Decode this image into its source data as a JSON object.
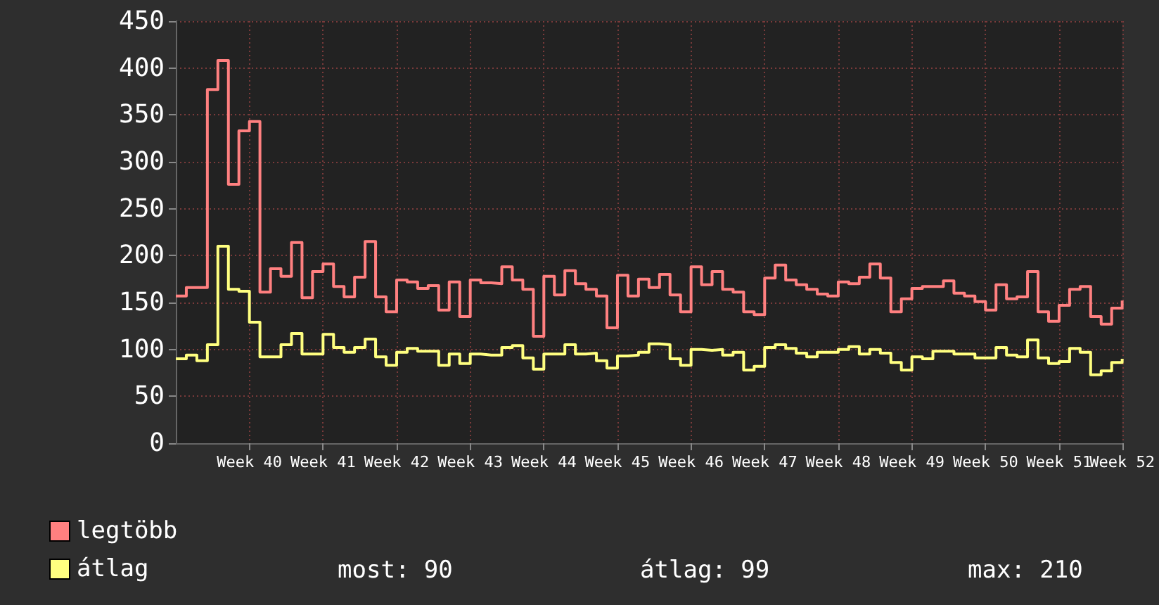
{
  "chart_data": {
    "type": "step",
    "categories": [
      null,
      null,
      null,
      null,
      null,
      null,
      null,
      "Week 40",
      null,
      null,
      null,
      null,
      null,
      null,
      "Week 41",
      null,
      null,
      null,
      null,
      null,
      null,
      "Week 42",
      null,
      null,
      null,
      null,
      null,
      null,
      "Week 43",
      null,
      null,
      null,
      null,
      null,
      null,
      "Week 44",
      null,
      null,
      null,
      null,
      null,
      null,
      "Week 45",
      null,
      null,
      null,
      null,
      null,
      null,
      "Week 46",
      null,
      null,
      null,
      null,
      null,
      null,
      "Week 47",
      null,
      null,
      null,
      null,
      null,
      null,
      "Week 48",
      null,
      null,
      null,
      null,
      null,
      null,
      "Week 49",
      null,
      null,
      null,
      null,
      null,
      null,
      "Week 50",
      null,
      null,
      null,
      null,
      null,
      null,
      "Week 51",
      null,
      null,
      null,
      null,
      null,
      "Week 52"
    ],
    "series": [
      {
        "name": "legtöbb",
        "color": "#ff8080",
        "values": [
          157,
          166,
          166,
          377,
          408,
          276,
          333,
          343,
          161,
          186,
          178,
          214,
          155,
          183,
          191,
          167,
          156,
          177,
          215,
          156,
          140,
          174,
          172,
          165,
          168,
          142,
          172,
          135,
          174,
          171,
          170,
          188,
          174,
          164,
          114,
          178,
          158,
          184,
          170,
          164,
          157,
          123,
          179,
          157,
          175,
          166,
          180,
          158,
          140,
          188,
          169,
          183,
          164,
          161,
          140,
          137,
          176,
          190,
          174,
          169,
          164,
          159,
          157,
          172,
          170,
          177,
          191,
          176,
          140,
          154,
          165,
          167,
          167,
          173,
          160,
          157,
          151,
          142,
          169,
          154,
          156,
          183,
          140,
          130,
          147,
          164,
          167,
          135,
          127,
          144,
          152
        ]
      },
      {
        "name": "átlag",
        "color": "#ffff80",
        "values": [
          90,
          94,
          88,
          105,
          210,
          164,
          162,
          129,
          92,
          92,
          105,
          117,
          95,
          95,
          116,
          102,
          97,
          102,
          111,
          92,
          83,
          97,
          101,
          98,
          98,
          83,
          95,
          85,
          95,
          94,
          94,
          102,
          104,
          91,
          79,
          95,
          95,
          105,
          95,
          96,
          88,
          80,
          93,
          94,
          97,
          106,
          105,
          90,
          83,
          100,
          99,
          100,
          94,
          97,
          78,
          82,
          102,
          105,
          101,
          96,
          92,
          97,
          97,
          100,
          103,
          95,
          100,
          96,
          86,
          78,
          92,
          90,
          98,
          98,
          95,
          95,
          91,
          91,
          102,
          94,
          92,
          110,
          91,
          85,
          87,
          101,
          97,
          73,
          77,
          86,
          90
        ]
      }
    ],
    "ylim": [
      0,
      450
    ],
    "yticks": [
      0,
      50,
      100,
      150,
      200,
      250,
      300,
      350,
      400,
      450
    ],
    "grid": true,
    "legend": "bottom left",
    "marker": "none",
    "line_style": "solid",
    "annotations": [
      "most: 90",
      "átlag: 99",
      "max: 210"
    ]
  }
}
